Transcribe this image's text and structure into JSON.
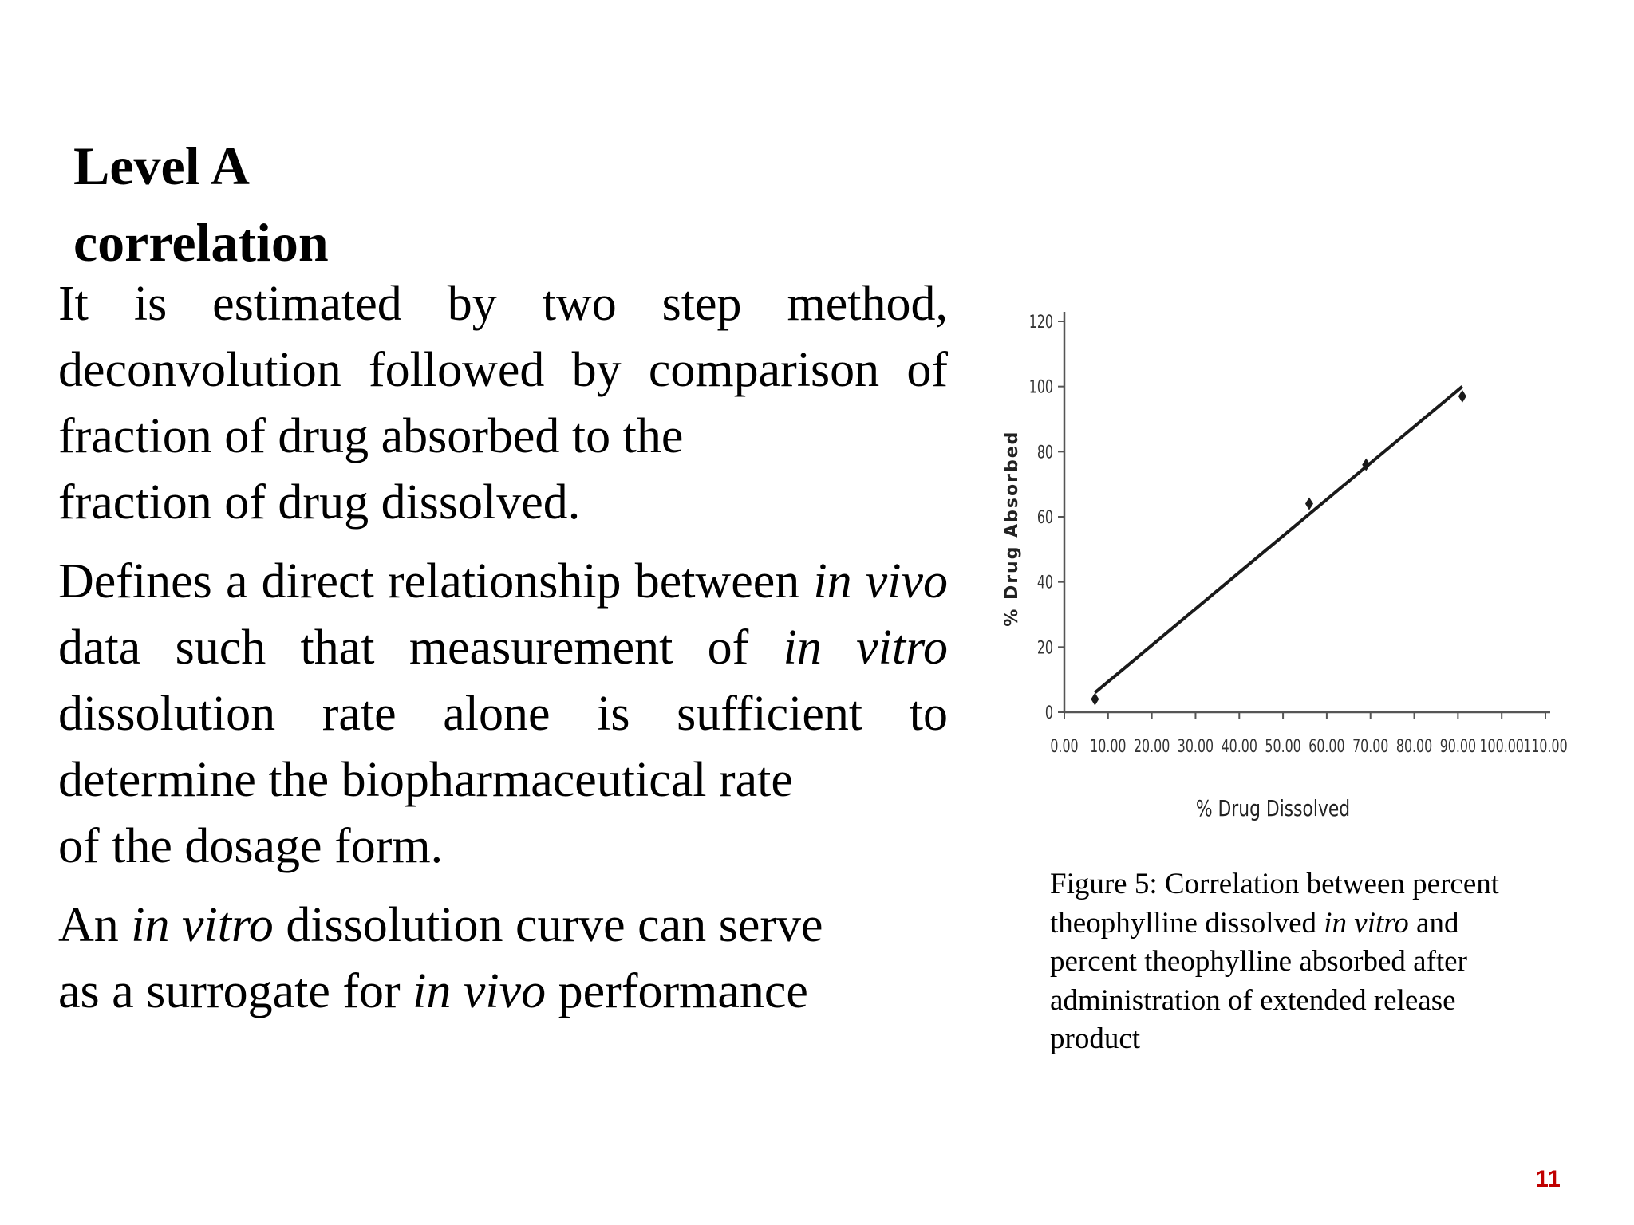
{
  "slide": {
    "title_lines": [
      "Level  A",
      "correlation"
    ],
    "paragraphs": [
      [
        {
          "t": "It is estimated by two step method, deconvolution followed by comparison of fraction of drug absorbed to the ",
          "i": false
        },
        {
          "t": "fraction of drug dissolved.",
          "i": false,
          "last": true
        }
      ],
      [
        {
          "t": "Defines a direct relationship between ",
          "i": false
        },
        {
          "t": "in vivo",
          "i": true
        },
        {
          "t": " data such that measurement of ",
          "i": false
        },
        {
          "t": "in vitro",
          "i": true
        },
        {
          "t": " dissolution rate alone is sufficient to determine the biopharmaceutical rate ",
          "i": false
        },
        {
          "t": "of the dosage form.",
          "i": false,
          "last": true
        }
      ],
      [
        {
          "t": "An ",
          "i": false
        },
        {
          "t": "in vitro",
          "i": true
        },
        {
          "t": " dissolution curve can serve ",
          "i": false
        },
        {
          "t": "as a surrogate for ",
          "i": false,
          "last": true
        },
        {
          "t": "in vivo",
          "i": true,
          "cont": true
        },
        {
          "t": " performance",
          "i": false,
          "cont": true
        }
      ]
    ],
    "caption": [
      {
        "t": "Figure 5: Correlation between percent  theophylline dissolved ",
        "i": false
      },
      {
        "t": "in vitro",
        "i": true
      },
      {
        "t": " and  percent theophylline absorbed after  administration of extended release  product",
        "i": false
      }
    ],
    "page_number": "11",
    "page_number_color": "#c00000"
  },
  "chart_data": {
    "type": "scatter",
    "xlabel": "% Drug Dissolved",
    "ylabel": "% Drug Absorbed",
    "xlim": [
      0,
      110
    ],
    "ylim": [
      0,
      120
    ],
    "x_ticks": [
      "0.00",
      "10.00",
      "20.00",
      "30.00",
      "40.00",
      "50.00",
      "60.00",
      "70.00",
      "80.00",
      "90.00",
      "100.00",
      "110.00"
    ],
    "y_ticks": [
      "0",
      "20",
      "40",
      "60",
      "80",
      "100",
      "120"
    ],
    "points": [
      {
        "x": 7,
        "y": 4
      },
      {
        "x": 56,
        "y": 64
      },
      {
        "x": 69,
        "y": 76
      },
      {
        "x": 91,
        "y": 97
      }
    ],
    "fit_line": {
      "x": [
        7,
        91
      ],
      "y": [
        6,
        100
      ]
    },
    "grid": false,
    "legend": "none",
    "mark_color": "#1a1a1a"
  }
}
